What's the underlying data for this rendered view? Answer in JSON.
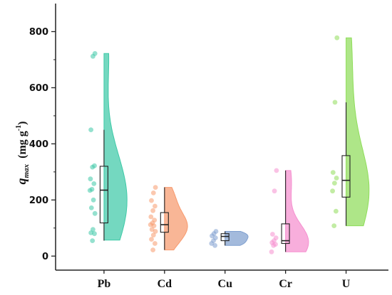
{
  "chart_data": {
    "type": "violin-box",
    "ylabel": {
      "symbol": "q",
      "subscript": "max",
      "unit_prefix": "  (mg g",
      "unit_superscript": "-1",
      "unit_suffix": ")"
    },
    "ylim": [
      -50,
      900
    ],
    "yticks": [
      0,
      200,
      400,
      600,
      800
    ],
    "grid": false,
    "categories": [
      "Pb",
      "Cd",
      "Cu",
      "Cr",
      "U"
    ],
    "series": [
      {
        "category": "Pb",
        "color": "#3ec9a7",
        "points": [
          722,
          712,
          450,
          322,
          317,
          275,
          258,
          238,
          234,
          200,
          172,
          152,
          95,
          83,
          80,
          55
        ],
        "box": {
          "q1": 118,
          "median": 235,
          "q3": 320,
          "min": 55,
          "max": 450
        },
        "violin_range": [
          57,
          722
        ]
      },
      {
        "category": "Cd",
        "color": "#f79a6e",
        "points": [
          245,
          225,
          198,
          178,
          162,
          140,
          128,
          118,
          112,
          108,
          95,
          88,
          75,
          60,
          45,
          22
        ],
        "box": {
          "q1": 85,
          "median": 112,
          "q3": 155,
          "min": 22,
          "max": 245
        },
        "violin_range": [
          22,
          245
        ]
      },
      {
        "category": "Cu",
        "color": "#7f9fcf",
        "points": [
          88,
          80,
          72,
          65,
          55,
          45,
          38
        ],
        "box": {
          "q1": 55,
          "median": 70,
          "q3": 80,
          "min": 38,
          "max": 88
        },
        "violin_range": [
          38,
          88
        ]
      },
      {
        "category": "Cr",
        "color": "#f58fcf",
        "points": [
          305,
          232,
          78,
          65,
          55,
          48,
          42,
          38,
          15
        ],
        "box": {
          "q1": 45,
          "median": 55,
          "q3": 115,
          "min": 15,
          "max": 305
        },
        "violin_range": [
          15,
          305
        ]
      },
      {
        "category": "U",
        "color": "#8fdd5a",
        "points": [
          778,
          548,
          298,
          278,
          260,
          232,
          160,
          108
        ],
        "box": {
          "q1": 210,
          "median": 270,
          "q3": 358,
          "min": 108,
          "max": 548
        },
        "violin_range": [
          108,
          778
        ]
      }
    ]
  }
}
